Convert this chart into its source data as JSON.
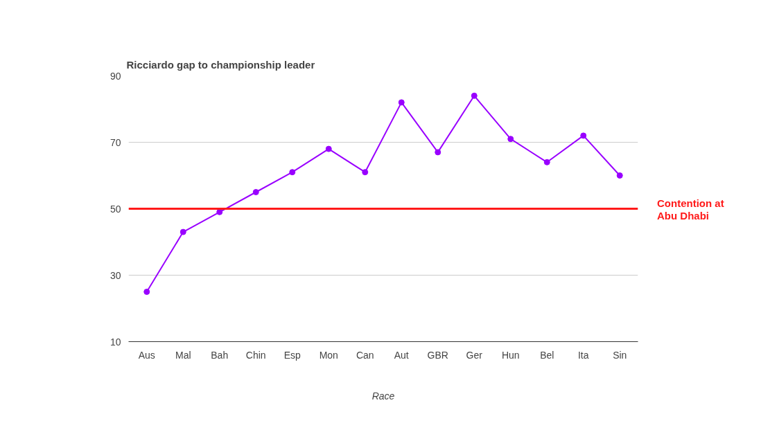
{
  "chart_data": {
    "type": "line",
    "title": "Ricciardo gap to championship leader",
    "xlabel": "Race",
    "categories": [
      "Aus",
      "Mal",
      "Bah",
      "Chin",
      "Esp",
      "Mon",
      "Can",
      "Aut",
      "GBR",
      "Ger",
      "Hun",
      "Bel",
      "Ita",
      "Sin"
    ],
    "series": [
      {
        "color": "#9900ff",
        "values": [
          25,
          43,
          49,
          55,
          61,
          68,
          61,
          82,
          67,
          84,
          71,
          64,
          72,
          60
        ]
      }
    ],
    "ylim": [
      10,
      90
    ],
    "yticks": [
      10,
      30,
      50,
      70,
      90
    ],
    "grid": "y",
    "marker": "circle",
    "ref_lines": [
      {
        "axis": "y",
        "value": 50,
        "label": "Contention at\nAbu Dhabi",
        "color": "#ff1a1a"
      }
    ]
  }
}
